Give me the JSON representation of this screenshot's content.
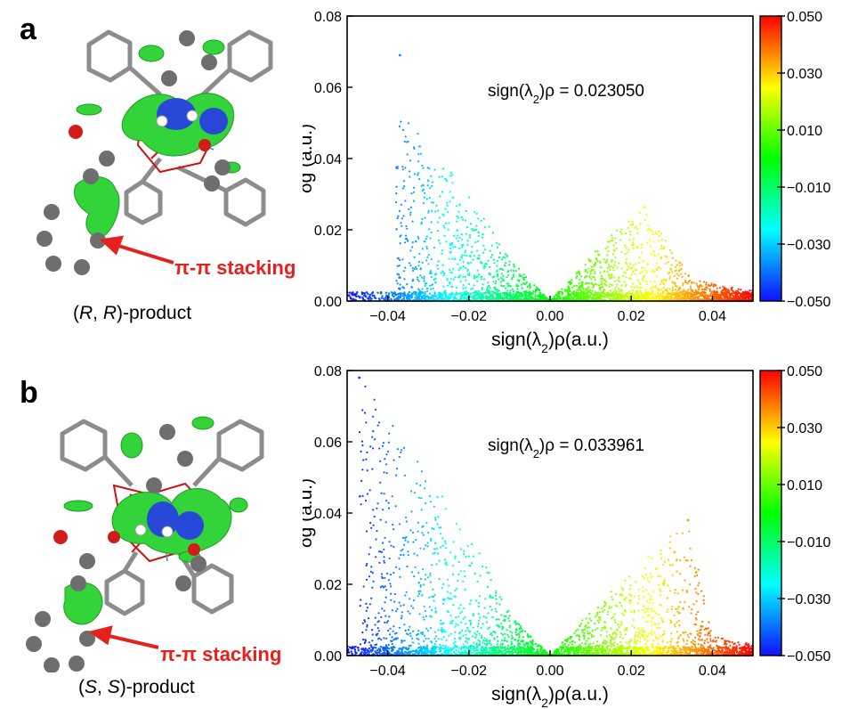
{
  "panels": [
    {
      "letter": "a",
      "product": {
        "pre": "(",
        "s1": "R",
        "mid": ", ",
        "s2": "R",
        "post": ")-product"
      },
      "interaction_label": "π-π stacking",
      "chart": {
        "annotation_prefix": "sign(λ",
        "annotation_sub": "2",
        "annotation_suffix": ")ρ = 0.023050"
      }
    },
    {
      "letter": "b",
      "product": {
        "pre": "(",
        "s1": "S",
        "mid": ", ",
        "s2": "S",
        "post": ")-product"
      },
      "interaction_label": "π-π stacking",
      "chart": {
        "annotation_prefix": "sign(λ",
        "annotation_sub": "2",
        "annotation_suffix": ")ρ = 0.033961"
      }
    }
  ],
  "chart_data": [
    {
      "type": "scatter",
      "xlabel_prefix": "sign(λ",
      "xlabel_sub": "2",
      "xlabel_suffix": ")ρ(a.u.)",
      "ylabel": "δg (a.u.)",
      "xlim": [
        -0.05,
        0.05
      ],
      "ylim": [
        0,
        0.08
      ],
      "xticks": [
        -0.04,
        -0.02,
        0.0,
        0.02,
        0.04
      ],
      "xtick_labels": [
        "−0.04",
        "−0.02",
        "0.00",
        "0.02",
        "0.04"
      ],
      "yticks": [
        0.0,
        0.02,
        0.04,
        0.06,
        0.08
      ],
      "ytick_labels": [
        "0.00",
        "0.02",
        "0.04",
        "0.06",
        "0.08"
      ],
      "colorbar": {
        "range": [
          -0.05,
          0.05
        ],
        "ticks": [
          0.05,
          0.03,
          0.01,
          -0.01,
          -0.03,
          -0.05
        ],
        "tick_labels": [
          "0.050",
          "0.030",
          "0.010",
          "−0.010",
          "−0.030",
          "−0.050"
        ],
        "colormap": [
          "#1010ff",
          "#00ffff",
          "#00ff00",
          "#ffff00",
          "#ff0000"
        ]
      },
      "annotation": "sign(λ2)ρ = 0.023050",
      "envelope": [
        {
          "x": -0.038,
          "y": 0.055
        },
        {
          "x": -0.02,
          "y": 0.03
        },
        {
          "x": -0.01,
          "y": 0.012
        },
        {
          "x": 0.0,
          "y": 0.0
        },
        {
          "x": 0.012,
          "y": 0.015
        },
        {
          "x": 0.023,
          "y": 0.027
        },
        {
          "x": 0.035,
          "y": 0.006
        },
        {
          "x": 0.05,
          "y": 0.003
        }
      ],
      "outliers": [
        {
          "x": -0.037,
          "y": 0.069
        }
      ]
    },
    {
      "type": "scatter",
      "xlabel_prefix": "sign(λ",
      "xlabel_sub": "2",
      "xlabel_suffix": ")ρ(a.u.)",
      "ylabel": "δg (a.u.)",
      "xlim": [
        -0.05,
        0.05
      ],
      "ylim": [
        0,
        0.08
      ],
      "xticks": [
        -0.04,
        -0.02,
        0.0,
        0.02,
        0.04
      ],
      "xtick_labels": [
        "−0.04",
        "−0.02",
        "0.00",
        "0.02",
        "0.04"
      ],
      "yticks": [
        0.0,
        0.02,
        0.04,
        0.06,
        0.08
      ],
      "ytick_labels": [
        "0.00",
        "0.02",
        "0.04",
        "0.06",
        "0.08"
      ],
      "colorbar": {
        "range": [
          -0.05,
          0.05
        ],
        "ticks": [
          0.05,
          0.03,
          0.01,
          -0.01,
          -0.03,
          -0.05
        ],
        "tick_labels": [
          "0.050",
          "0.030",
          "0.010",
          "−0.010",
          "−0.030",
          "−0.050"
        ],
        "colormap": [
          "#1010ff",
          "#00ffff",
          "#00ff00",
          "#ffff00",
          "#ff0000"
        ]
      },
      "annotation": "sign(λ2)ρ = 0.033961",
      "envelope": [
        {
          "x": -0.047,
          "y": 0.078
        },
        {
          "x": -0.02,
          "y": 0.035
        },
        {
          "x": -0.01,
          "y": 0.012
        },
        {
          "x": 0.0,
          "y": 0.0
        },
        {
          "x": 0.012,
          "y": 0.015
        },
        {
          "x": 0.034,
          "y": 0.038
        },
        {
          "x": 0.04,
          "y": 0.006
        },
        {
          "x": 0.05,
          "y": 0.003
        }
      ],
      "outliers": [
        {
          "x": -0.047,
          "y": 0.078
        },
        {
          "x": 0.034,
          "y": 0.038
        }
      ]
    }
  ]
}
